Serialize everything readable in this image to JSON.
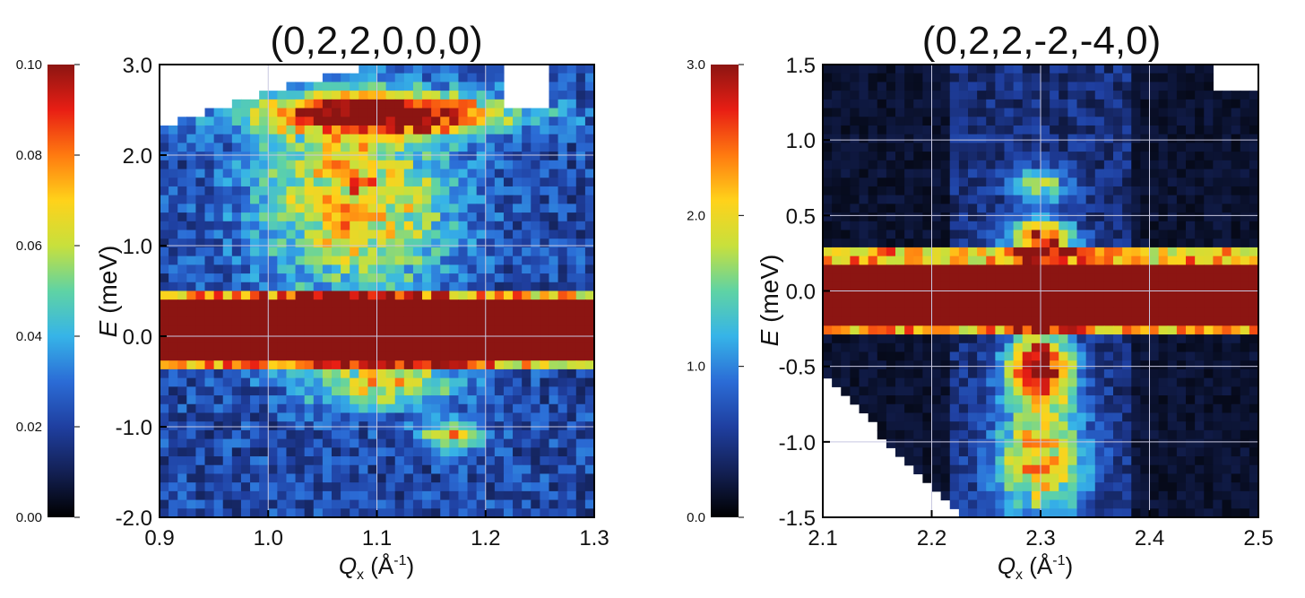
{
  "chart_data": [
    {
      "type": "heatmap",
      "title": "(0,2,2,0,0,0)",
      "xlabel_symbol": "Q",
      "xlabel_subscript": "x",
      "xlabel_unit_open": " (Å",
      "xlabel_unit_exp": "-1",
      "xlabel_unit_close": ")",
      "ylabel_symbol": "E",
      "ylabel_unit": " (meV)",
      "xlim": [
        0.9,
        1.3
      ],
      "ylim": [
        -2.0,
        3.0
      ],
      "xticks": [
        "0.9",
        "1.0",
        "1.1",
        "1.2",
        "1.3"
      ],
      "yticks": [
        "-2.0",
        "-1.0",
        "0.0",
        "1.0",
        "2.0",
        "3.0"
      ],
      "elastic_band_E": [
        -0.3,
        0.4
      ],
      "inelastic_peaks": [
        {
          "Q": 1.11,
          "E": 2.45,
          "width_Q": 0.08,
          "width_E": 0.15,
          "intensity": 0.085
        },
        {
          "Q": 1.08,
          "E": 1.5,
          "width_Q": 0.06,
          "width_E": 0.8,
          "intensity": 0.05
        },
        {
          "Q": 1.1,
          "E": -0.5,
          "width_Q": 0.05,
          "width_E": 0.2,
          "intensity": 0.045
        },
        {
          "Q": 1.17,
          "E": -1.1,
          "width_Q": 0.02,
          "width_E": 0.1,
          "intensity": 0.05
        }
      ],
      "colorbar": {
        "min": 0.0,
        "max": 0.1,
        "ticks": [
          "0.00",
          "0.02",
          "0.04",
          "0.06",
          "0.08",
          "0.10"
        ]
      }
    },
    {
      "type": "heatmap",
      "title": "(0,2,2,-2,-4,0)",
      "xlabel_symbol": "Q",
      "xlabel_subscript": "x",
      "xlabel_unit_open": " (Å",
      "xlabel_unit_exp": "-1",
      "xlabel_unit_close": ")",
      "ylabel_symbol": "E",
      "ylabel_unit": " (meV)",
      "xlim": [
        2.1,
        2.5
      ],
      "ylim": [
        -1.5,
        1.5
      ],
      "xticks": [
        "2.1",
        "2.2",
        "2.3",
        "2.4",
        "2.5"
      ],
      "yticks": [
        "-1.5",
        "-1.0",
        "-0.5",
        "0.0",
        "0.5",
        "1.0",
        "1.5"
      ],
      "elastic_band_E": [
        -0.25,
        0.2
      ],
      "inelastic_peaks": [
        {
          "Q": 2.3,
          "E": 0.35,
          "width_Q": 0.02,
          "width_E": 0.08,
          "intensity": 2.6
        },
        {
          "Q": 2.3,
          "E": 0.7,
          "width_Q": 0.02,
          "width_E": 0.08,
          "intensity": 1.2
        },
        {
          "Q": 2.3,
          "E": -0.5,
          "width_Q": 0.02,
          "width_E": 0.15,
          "intensity": 2.8
        },
        {
          "Q": 2.3,
          "E": -1.1,
          "width_Q": 0.03,
          "width_E": 0.3,
          "intensity": 1.8
        }
      ],
      "colorbar": {
        "min": 0.0,
        "max": 3.0,
        "ticks": [
          "0.0",
          "1.0",
          "2.0",
          "3.0"
        ]
      }
    }
  ],
  "colors": {
    "colormap": [
      "#000000",
      "#132054",
      "#1f3fa0",
      "#2b6cd6",
      "#36b4e8",
      "#5fd3a4",
      "#c8e03c",
      "#ffd21a",
      "#ff7a10",
      "#e81e14",
      "#8c1512"
    ],
    "axis": "#000000",
    "grid": "#c8c8e0"
  }
}
